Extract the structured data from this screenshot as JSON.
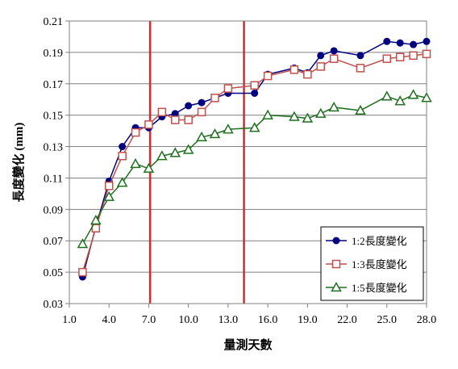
{
  "chart_data": {
    "type": "line",
    "title": "",
    "xlabel": "量測天數",
    "ylabel": "長度變化 (mm)",
    "xlim": [
      1.0,
      28.0
    ],
    "ylim": [
      0.03,
      0.21
    ],
    "x_ticks": [
      "1.0",
      "4.0",
      "7.0",
      "10.0",
      "13.0",
      "16.0",
      "19.0",
      "22.0",
      "25.0",
      "28.0"
    ],
    "y_ticks": [
      "0.03",
      "0.05",
      "0.07",
      "0.09",
      "0.11",
      "0.13",
      "0.15",
      "0.17",
      "0.19",
      "0.21"
    ],
    "grid": "horizontal",
    "legend_position": "bottom-right",
    "reference_lines_x": [
      7.1,
      14.2
    ],
    "reference_line_color": "#e0262a",
    "series": [
      {
        "name": "1:2長度變化",
        "color": "#000080",
        "marker": "circle-filled",
        "points": [
          [
            2,
            0.047
          ],
          [
            3,
            0.079
          ],
          [
            4,
            0.108
          ],
          [
            5,
            0.13
          ],
          [
            6,
            0.142
          ],
          [
            7,
            0.142
          ],
          [
            8,
            0.149
          ],
          [
            9,
            0.151
          ],
          [
            10,
            0.156
          ],
          [
            11,
            0.158
          ],
          [
            12,
            0.161
          ],
          [
            13,
            0.164
          ],
          [
            15,
            0.164
          ],
          [
            16,
            0.176
          ],
          [
            18,
            0.18
          ],
          [
            19,
            0.177
          ],
          [
            20,
            0.188
          ],
          [
            21,
            0.191
          ],
          [
            23,
            0.188
          ],
          [
            25,
            0.197
          ],
          [
            26,
            0.196
          ],
          [
            27,
            0.195
          ],
          [
            28,
            0.197
          ]
        ]
      },
      {
        "name": "1:3長度變化",
        "color": "#c0504d",
        "marker": "square-open",
        "points": [
          [
            2,
            0.05
          ],
          [
            3,
            0.078
          ],
          [
            4,
            0.105
          ],
          [
            5,
            0.124
          ],
          [
            6,
            0.139
          ],
          [
            7,
            0.144
          ],
          [
            8,
            0.152
          ],
          [
            9,
            0.147
          ],
          [
            10,
            0.147
          ],
          [
            11,
            0.152
          ],
          [
            12,
            0.161
          ],
          [
            13,
            0.167
          ],
          [
            15,
            0.169
          ],
          [
            16,
            0.175
          ],
          [
            18,
            0.179
          ],
          [
            19,
            0.176
          ],
          [
            20,
            0.181
          ],
          [
            21,
            0.186
          ],
          [
            23,
            0.18
          ],
          [
            25,
            0.186
          ],
          [
            26,
            0.187
          ],
          [
            27,
            0.188
          ],
          [
            28,
            0.189
          ]
        ]
      },
      {
        "name": "1:5長度變化",
        "color": "#1f6f1f",
        "marker": "triangle-open",
        "points": [
          [
            2,
            0.068
          ],
          [
            3,
            0.083
          ],
          [
            4,
            0.098
          ],
          [
            5,
            0.107
          ],
          [
            6,
            0.119
          ],
          [
            7,
            0.116
          ],
          [
            8,
            0.124
          ],
          [
            9,
            0.126
          ],
          [
            10,
            0.128
          ],
          [
            11,
            0.136
          ],
          [
            12,
            0.138
          ],
          [
            13,
            0.141
          ],
          [
            15,
            0.142
          ],
          [
            16,
            0.15
          ],
          [
            18,
            0.149
          ],
          [
            19,
            0.148
          ],
          [
            20,
            0.151
          ],
          [
            21,
            0.155
          ],
          [
            23,
            0.153
          ],
          [
            25,
            0.162
          ],
          [
            26,
            0.159
          ],
          [
            27,
            0.163
          ],
          [
            28,
            0.161
          ]
        ]
      }
    ]
  }
}
